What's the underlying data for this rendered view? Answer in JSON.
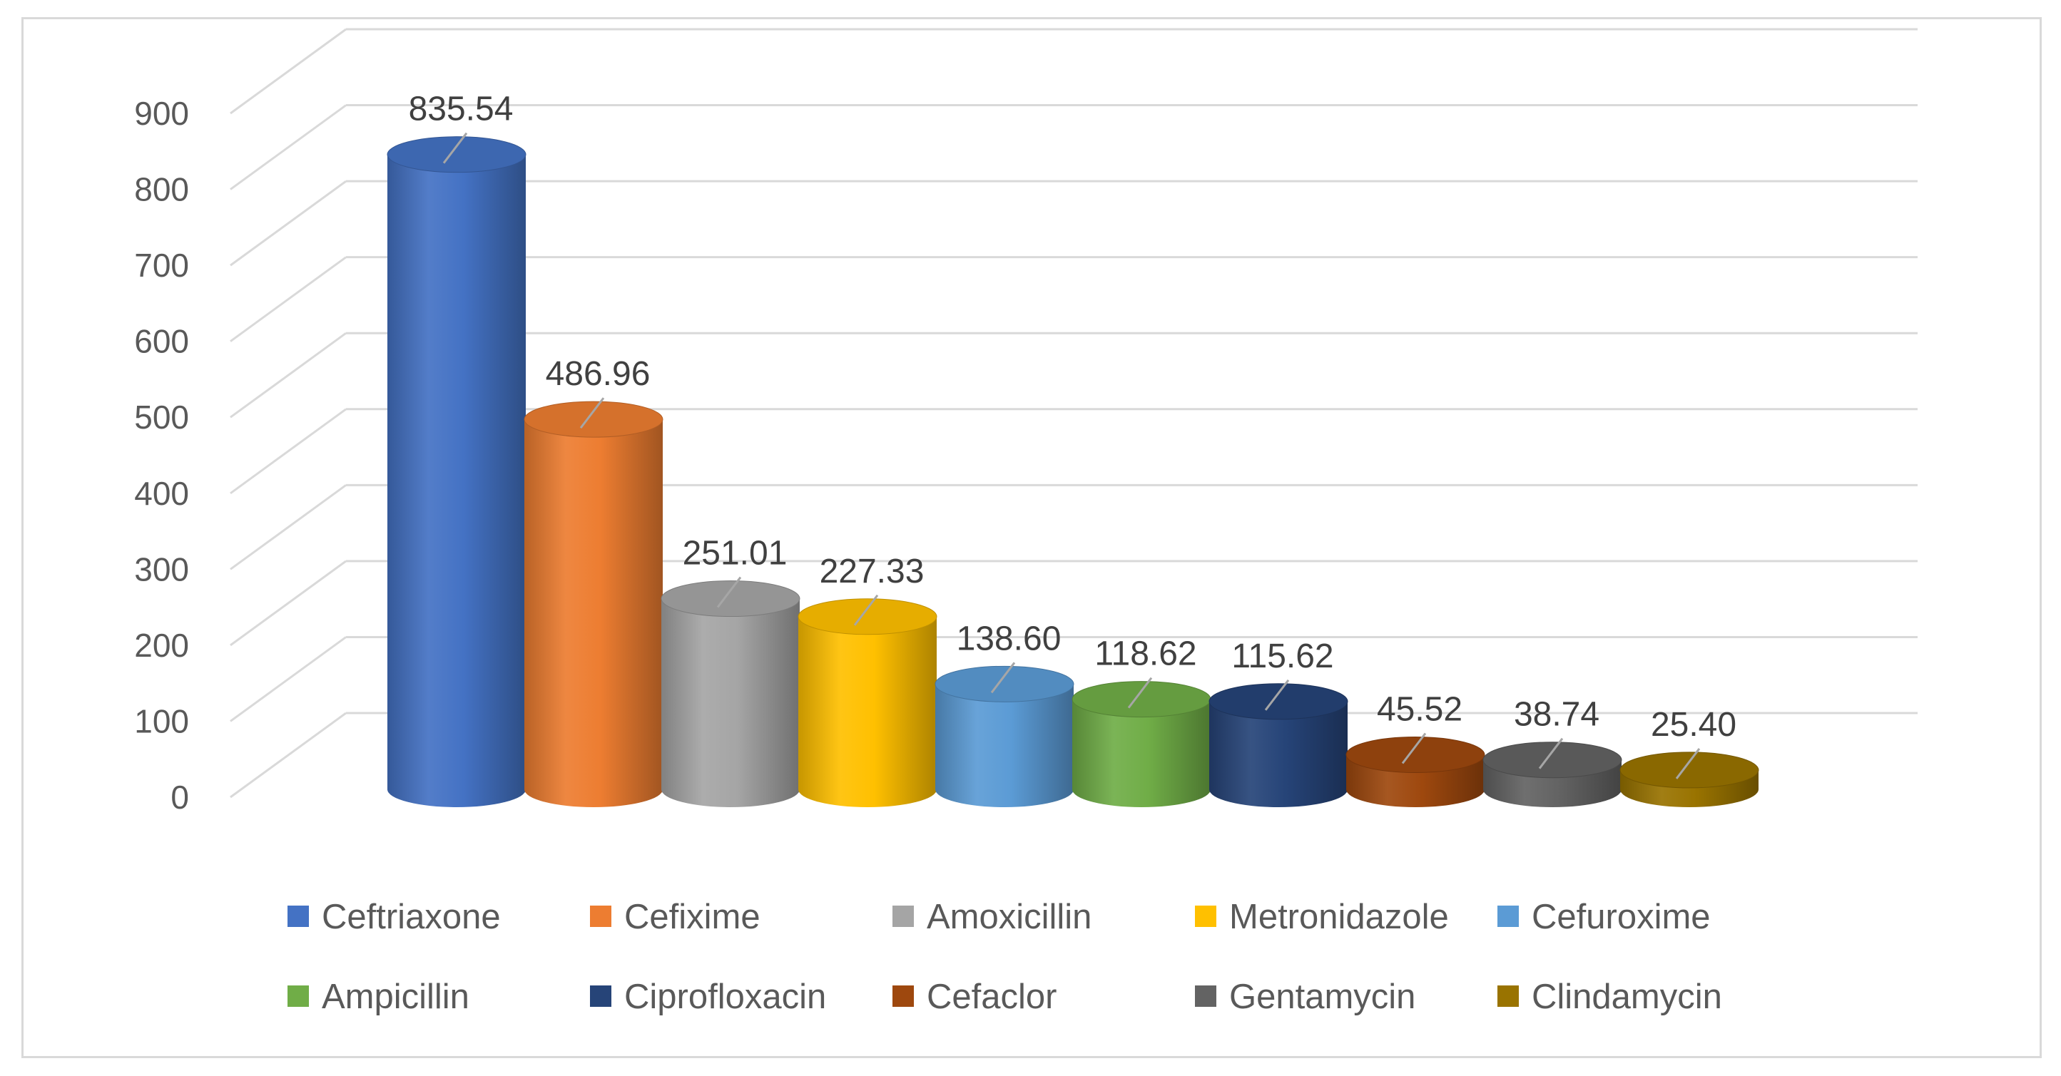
{
  "chart_data": {
    "type": "bar",
    "style": "3d-cylinder",
    "title": "",
    "xlabel": "",
    "ylabel": "",
    "ylim": [
      0,
      900
    ],
    "yticks": [
      0,
      100,
      200,
      300,
      400,
      500,
      600,
      700,
      800,
      900
    ],
    "grid": true,
    "legend_position": "bottom",
    "categories": [
      "Ceftriaxone",
      "Cefixime",
      "Amoxicillin",
      "Metronidazole",
      "Cefuroxime",
      "Ampicillin",
      "Ciprofloxacin",
      "Cefaclor",
      "Gentamycin",
      "Clindamycin"
    ],
    "values": [
      835.54,
      486.96,
      251.01,
      227.33,
      138.6,
      118.62,
      115.62,
      45.52,
      38.74,
      25.4
    ],
    "data_labels": [
      "835.54",
      "486.96",
      "251.01",
      "227.33",
      "138.60",
      "118.62",
      "115.62",
      "45.52",
      "38.74",
      "25.40"
    ],
    "colors": [
      "#4472C4",
      "#ED7D31",
      "#A5A5A5",
      "#FFC000",
      "#5B9BD5",
      "#70AD47",
      "#264478",
      "#9E480E",
      "#636363",
      "#997300"
    ]
  }
}
